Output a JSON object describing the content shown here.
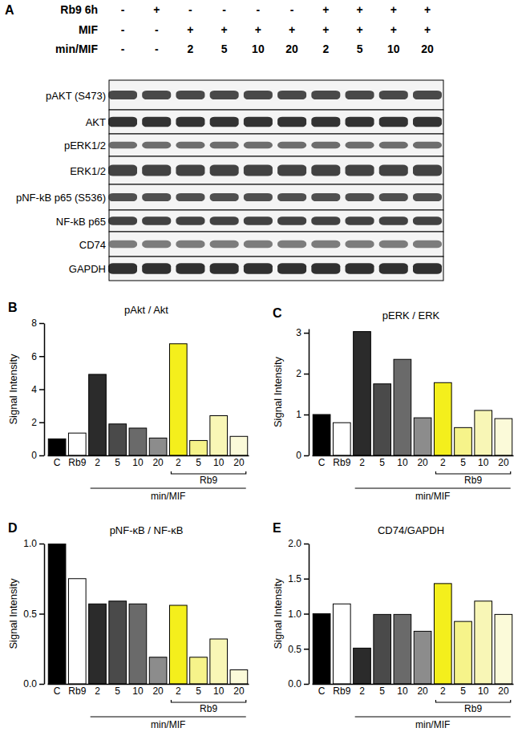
{
  "blot": {
    "panel": "A",
    "conditions": [
      {
        "label": "Rb9 6h",
        "values": [
          "-",
          "+",
          "-",
          "-",
          "-",
          "-",
          "+",
          "+",
          "+",
          "+"
        ]
      },
      {
        "label": "MIF",
        "values": [
          "-",
          "-",
          "+",
          "+",
          "+",
          "+",
          "+",
          "+",
          "+",
          "+"
        ]
      },
      {
        "label": "min/MIF",
        "values": [
          "-",
          "-",
          "2",
          "5",
          "10",
          "20",
          "2",
          "5",
          "10",
          "20"
        ]
      }
    ],
    "bands": [
      "pAKT (S473)",
      "AKT",
      "pERK1/2",
      "ERK1/2",
      "pNF-kB p65 (S536)",
      "NF-kB p65",
      "CD74",
      "GAPDH"
    ]
  },
  "chart_data": [
    {
      "type": "bar",
      "title": "pAkt /  Akt",
      "y_label": "Signal Intensity",
      "annotations": [
        "B",
        "Rb9",
        "min/MIF"
      ],
      "categories": [
        "C",
        "Rb9",
        "2",
        "5",
        "10",
        "20",
        "2",
        "5",
        "10",
        "20"
      ],
      "values": [
        1.0,
        1.35,
        4.9,
        1.9,
        1.65,
        1.05,
        6.75,
        0.9,
        2.4,
        1.15
      ],
      "colors": [
        "#000000",
        "#ffffff",
        "#2b2b2b",
        "#4a4a4a",
        "#6a6a6a",
        "#8c8c8c",
        "#f4ef1c",
        "#f6f38a",
        "#f8f6b6",
        "#fbfad9"
      ],
      "ylim": [
        0,
        8
      ],
      "yticks": [
        0,
        2,
        4,
        6,
        8
      ],
      "grid": false
    },
    {
      "type": "bar",
      "title": "pERK / ERK",
      "y_label": "Signal Intensity",
      "annotations": [
        "C",
        "Rb9",
        "min/MIF"
      ],
      "categories": [
        "C",
        "Rb9",
        "2",
        "5",
        "10",
        "20",
        "2",
        "5",
        "10",
        "20"
      ],
      "values": [
        1.0,
        0.8,
        3.03,
        1.75,
        2.35,
        0.92,
        1.78,
        0.68,
        1.1,
        0.9
      ],
      "colors": [
        "#000000",
        "#ffffff",
        "#2b2b2b",
        "#4a4a4a",
        "#6a6a6a",
        "#8c8c8c",
        "#f4ef1c",
        "#f6f38a",
        "#f8f6b6",
        "#fbfad9"
      ],
      "ylim": [
        0,
        3.1
      ],
      "yticks": [
        0,
        1,
        2,
        3
      ],
      "grid": false
    },
    {
      "type": "bar",
      "title": "pNF-κB / NF-κB",
      "y_label": "Signal Intensity",
      "annotations": [
        "D",
        "Rb9",
        "min/MIF"
      ],
      "categories": [
        "C",
        "Rb9",
        "2",
        "5",
        "10",
        "20",
        "2",
        "5",
        "10",
        "20"
      ],
      "values": [
        1.0,
        0.75,
        0.57,
        0.59,
        0.57,
        0.19,
        0.56,
        0.19,
        0.32,
        0.1
      ],
      "colors": [
        "#000000",
        "#ffffff",
        "#2b2b2b",
        "#4a4a4a",
        "#6a6a6a",
        "#8c8c8c",
        "#f4ef1c",
        "#f6f38a",
        "#f8f6b6",
        "#fbfad9"
      ],
      "ylim": [
        0,
        1
      ],
      "yticks": [
        {
          "value": 0,
          "label": "0.0"
        },
        {
          "value": 0.5,
          "label": "0.5"
        },
        {
          "value": 1,
          "label": "1.0"
        }
      ],
      "grid": false
    },
    {
      "type": "bar",
      "title": "CD74/GAPDH",
      "y_label": "Signal Intensity",
      "annotations": [
        "E",
        "Rb9",
        "min/MIF"
      ],
      "categories": [
        "C",
        "Rb9",
        "2",
        "5",
        "10",
        "20",
        "2",
        "5",
        "10",
        "20"
      ],
      "values": [
        1.0,
        1.14,
        0.51,
        0.99,
        0.99,
        0.75,
        1.43,
        0.89,
        1.18,
        0.99
      ],
      "colors": [
        "#000000",
        "#ffffff",
        "#2b2b2b",
        "#4a4a4a",
        "#6a6a6a",
        "#8c8c8c",
        "#f4ef1c",
        "#f6f38a",
        "#f8f6b6",
        "#fbfad9"
      ],
      "ylim": [
        0,
        2
      ],
      "yticks": [
        {
          "value": 0,
          "label": "0.0"
        },
        {
          "value": 0.5,
          "label": "0.5"
        },
        {
          "value": 1,
          "label": "1.0"
        },
        {
          "value": 1.5,
          "label": "1.5"
        },
        {
          "value": 2,
          "label": "2.0"
        }
      ],
      "grid": false
    }
  ]
}
